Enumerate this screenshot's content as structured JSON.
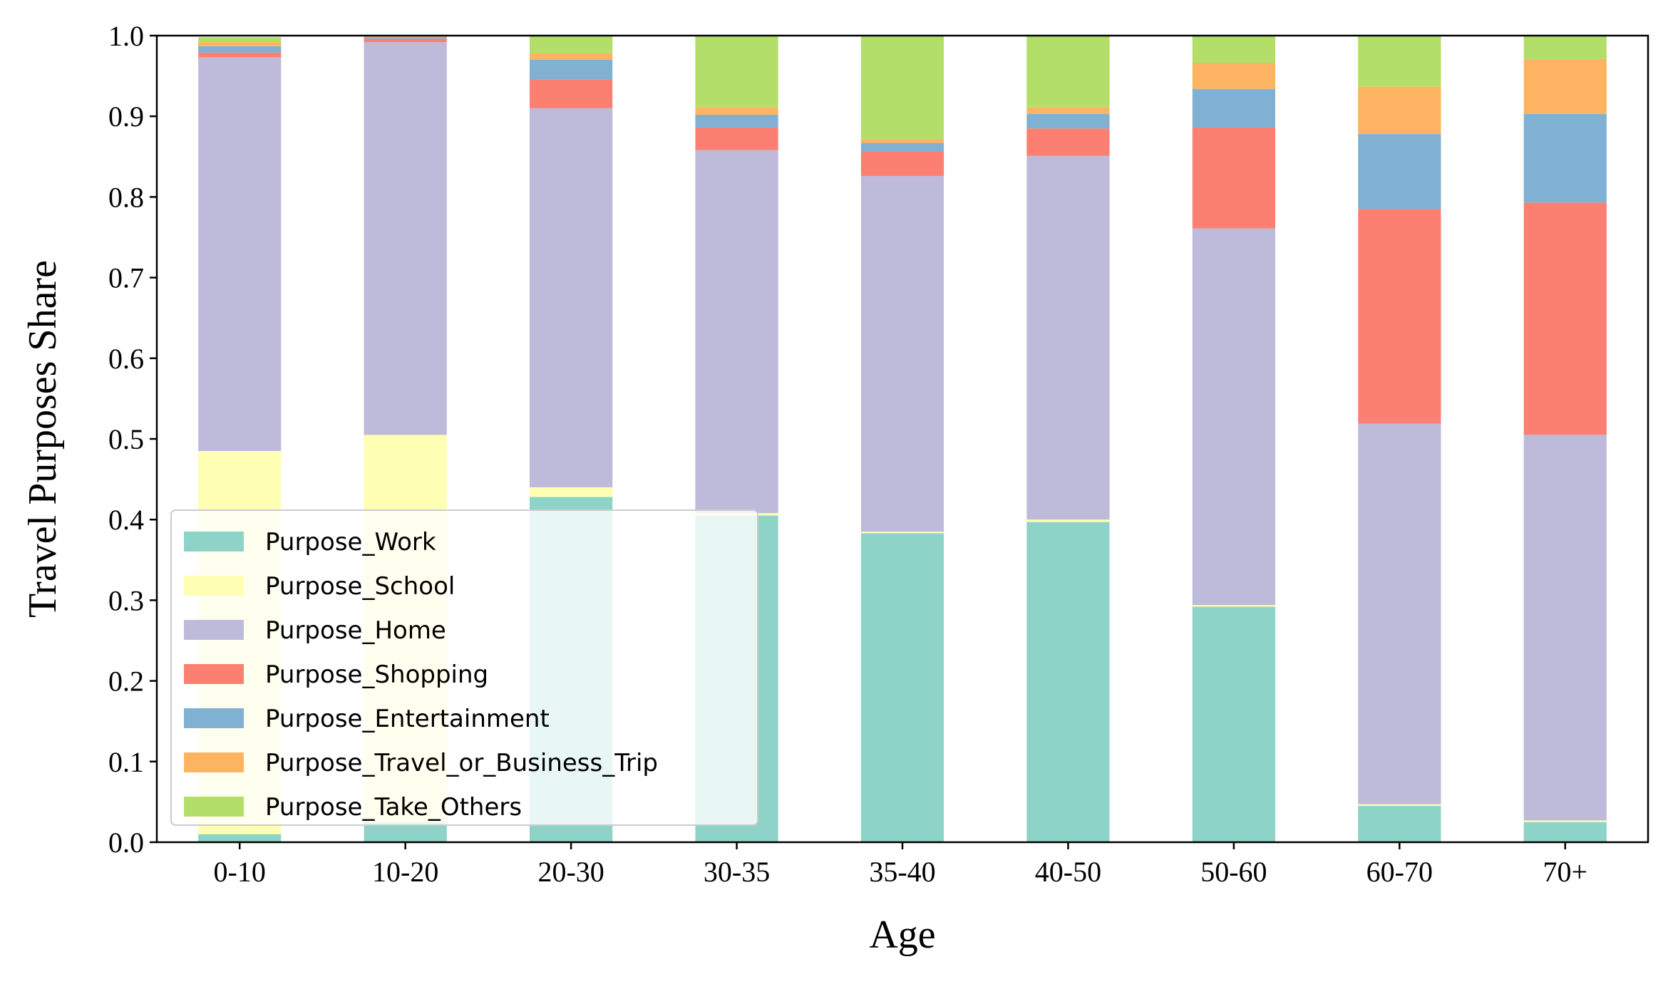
{
  "chart_data": {
    "type": "bar",
    "stacked": true,
    "xlabel": "Age",
    "ylabel": "Travel Purposes Share",
    "ylim": [
      0,
      1.0
    ],
    "yticks": [
      "0.0",
      "0.1",
      "0.2",
      "0.3",
      "0.4",
      "0.5",
      "0.6",
      "0.7",
      "0.8",
      "0.9",
      "1.0"
    ],
    "categories": [
      "0-10",
      "10-20",
      "20-30",
      "30-35",
      "35-40",
      "40-50",
      "50-60",
      "60-70",
      "70+"
    ],
    "legend_position": "lower-left",
    "grid": false,
    "series": [
      {
        "name": "Purpose_Work",
        "color": "#8dd3c7",
        "values": [
          0.01,
          0.025,
          0.428,
          0.405,
          0.383,
          0.397,
          0.292,
          0.045,
          0.025
        ]
      },
      {
        "name": "Purpose_School",
        "color": "#ffffb3",
        "values": [
          0.475,
          0.48,
          0.012,
          0.003,
          0.002,
          0.003,
          0.002,
          0.002,
          0.002
        ]
      },
      {
        "name": "Purpose_Home",
        "color": "#bebada",
        "values": [
          0.488,
          0.487,
          0.47,
          0.45,
          0.441,
          0.451,
          0.467,
          0.472,
          0.478
        ]
      },
      {
        "name": "Purpose_Shopping",
        "color": "#fb8072",
        "values": [
          0.006,
          0.004,
          0.036,
          0.028,
          0.03,
          0.034,
          0.125,
          0.266,
          0.288
        ]
      },
      {
        "name": "Purpose_Entertainment",
        "color": "#80b1d3",
        "values": [
          0.008,
          0.002,
          0.024,
          0.016,
          0.011,
          0.018,
          0.048,
          0.093,
          0.11
        ]
      },
      {
        "name": "Purpose_Travel_or_Business_Trip",
        "color": "#fdb462",
        "values": [
          0.005,
          0.001,
          0.008,
          0.009,
          0.005,
          0.008,
          0.032,
          0.059,
          0.068
        ]
      },
      {
        "name": "Purpose_Take_Others",
        "color": "#b3de69",
        "values": [
          0.006,
          0.001,
          0.022,
          0.089,
          0.128,
          0.089,
          0.034,
          0.063,
          0.029
        ]
      }
    ]
  }
}
